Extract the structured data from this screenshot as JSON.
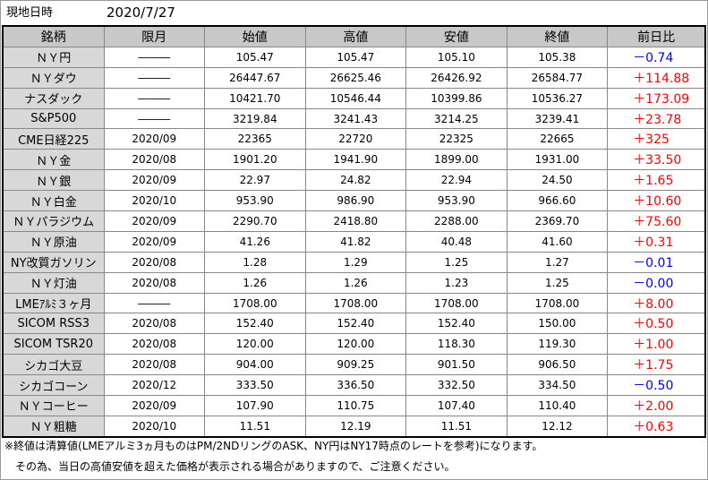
{
  "header": {
    "label": "現地日時",
    "date": "2020/7/27"
  },
  "table": {
    "columns": [
      "銘柄",
      "限月",
      "始値",
      "高値",
      "安値",
      "終値",
      "前日比"
    ],
    "change_colors": {
      "＋": "#ff0000",
      "－": "#0000ff"
    },
    "rows": [
      [
        "ＮＹ円",
        "―――",
        "105.47",
        "105.47",
        "105.10",
        "105.38",
        "－0.74"
      ],
      [
        "ＮＹダウ",
        "―――",
        "26447.67",
        "26625.46",
        "26426.92",
        "26584.77",
        "＋114.88"
      ],
      [
        "ナスダック",
        "―――",
        "10421.70",
        "10546.44",
        "10399.86",
        "10536.27",
        "＋173.09"
      ],
      [
        "S&P500",
        "―――",
        "3219.84",
        "3241.43",
        "3214.25",
        "3239.41",
        "＋23.78"
      ],
      [
        "CME日経225",
        "2020/09",
        "22365",
        "22720",
        "22325",
        "22665",
        "＋325"
      ],
      [
        "ＮＹ金",
        "2020/08",
        "1901.20",
        "1941.90",
        "1899.00",
        "1931.00",
        "＋33.50"
      ],
      [
        "ＮＹ銀",
        "2020/09",
        "22.97",
        "24.82",
        "22.94",
        "24.50",
        "＋1.65"
      ],
      [
        "ＮＹ白金",
        "2020/10",
        "953.90",
        "986.90",
        "953.90",
        "966.60",
        "＋10.60"
      ],
      [
        "ＮＹパラジウム",
        "2020/09",
        "2290.70",
        "2418.80",
        "2288.00",
        "2369.70",
        "＋75.60"
      ],
      [
        "ＮＹ原油",
        "2020/09",
        "41.26",
        "41.82",
        "40.48",
        "41.60",
        "＋0.31"
      ],
      [
        "NY改質ガソリン",
        "2020/08",
        "1.28",
        "1.29",
        "1.25",
        "1.27",
        "－0.01"
      ],
      [
        "ＮＹ灯油",
        "2020/08",
        "1.26",
        "1.26",
        "1.23",
        "1.25",
        "－0.00"
      ],
      [
        "LMEｱﾙﾐ３ヶ月",
        "―――",
        "1708.00",
        "1708.00",
        "1708.00",
        "1708.00",
        "＋8.00"
      ],
      [
        "SICOM RSS3",
        "2020/08",
        "152.40",
        "152.40",
        "152.40",
        "150.00",
        "＋0.50"
      ],
      [
        "SICOM TSR20",
        "2020/08",
        "120.00",
        "120.00",
        "118.30",
        "119.30",
        "＋1.00"
      ],
      [
        "シカゴ大豆",
        "2020/08",
        "904.00",
        "909.25",
        "901.50",
        "906.50",
        "＋1.75"
      ],
      [
        "シカゴコーン",
        "2020/12",
        "333.50",
        "336.50",
        "332.50",
        "334.50",
        "－0.50"
      ],
      [
        "ＮＹコーヒー",
        "2020/09",
        "107.90",
        "110.75",
        "107.40",
        "110.40",
        "＋2.00"
      ],
      [
        "ＮＹ粗糖",
        "2020/10",
        "11.51",
        "12.19",
        "11.51",
        "12.12",
        "＋0.63"
      ]
    ]
  },
  "notes": [
    "※終値は清算値(LMEアルミ3ヵ月ものはPM/2NDリングのASK、NY円はNY17時点のレートを参考)になります。",
    "　その為、当日の高値安値を超えた価格が表示される場合がありますので、ご注意ください。"
  ]
}
